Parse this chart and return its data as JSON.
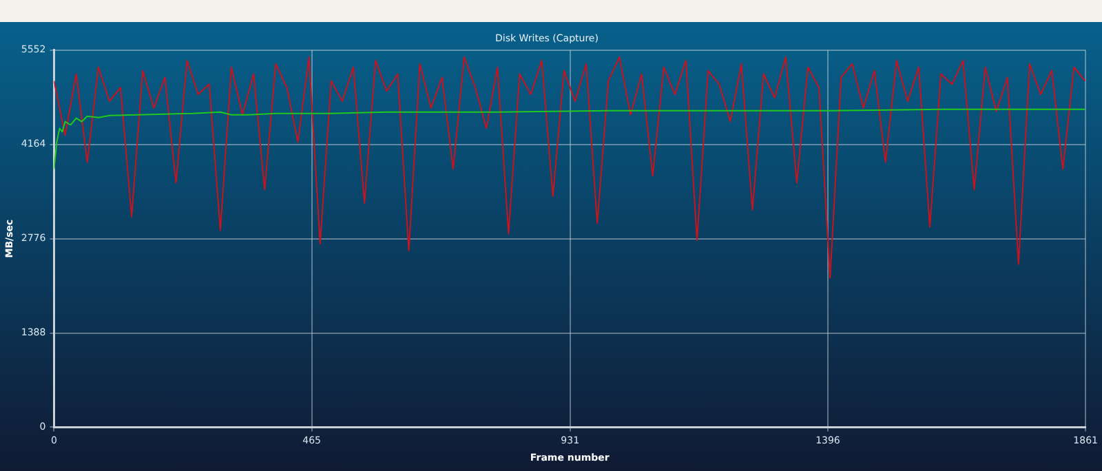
{
  "chart_data": {
    "type": "line",
    "title": "Disk Writes (Capture)",
    "xlabel": "Frame number",
    "ylabel": "MB/sec",
    "xlim": [
      0,
      1861
    ],
    "xticks": [
      0,
      465,
      931,
      1396,
      1861
    ],
    "ylim": [
      0,
      5552
    ],
    "yticks": [
      0,
      1388,
      2776,
      4164,
      5552
    ],
    "grid": true,
    "legend": false,
    "marker": "none",
    "series": [
      {
        "color": "#c8141e",
        "x": [
          0,
          20,
          40,
          60,
          80,
          100,
          120,
          140,
          160,
          180,
          200,
          220,
          240,
          260,
          280,
          300,
          320,
          340,
          360,
          380,
          400,
          420,
          440,
          460,
          480,
          500,
          520,
          540,
          560,
          580,
          600,
          620,
          640,
          660,
          680,
          700,
          720,
          740,
          760,
          780,
          800,
          820,
          840,
          860,
          880,
          900,
          920,
          940,
          960,
          980,
          1000,
          1020,
          1040,
          1060,
          1080,
          1100,
          1120,
          1140,
          1160,
          1180,
          1200,
          1220,
          1240,
          1260,
          1280,
          1300,
          1320,
          1340,
          1360,
          1380,
          1400,
          1420,
          1440,
          1460,
          1480,
          1500,
          1520,
          1540,
          1560,
          1580,
          1600,
          1620,
          1640,
          1660,
          1680,
          1700,
          1720,
          1740,
          1760,
          1780,
          1800,
          1820,
          1840,
          1860
        ],
        "values": [
          5100,
          4300,
          5200,
          3900,
          5300,
          4800,
          5000,
          3100,
          5250,
          4700,
          5150,
          3600,
          5400,
          4900,
          5050,
          2900,
          5300,
          4600,
          5200,
          3500,
          5350,
          5000,
          4200,
          5450,
          2700,
          5100,
          4800,
          5300,
          3300,
          5400,
          4950,
          5200,
          2600,
          5350,
          4700,
          5150,
          3800,
          5450,
          5000,
          4400,
          5300,
          2850,
          5200,
          4900,
          5400,
          3400,
          5250,
          4800,
          5350,
          3000,
          5100,
          5450,
          4600,
          5200,
          3700,
          5300,
          4900,
          5400,
          2750,
          5250,
          5050,
          4500,
          5350,
          3200,
          5200,
          4850,
          5450,
          3600,
          5300,
          5000,
          2200,
          5150,
          5350,
          4700,
          5250,
          3900,
          5400,
          4800,
          5300,
          2950,
          5200,
          5050,
          5400,
          3500,
          5300,
          4650,
          5150,
          2400,
          5350,
          4900,
          5250,
          3800,
          5300,
          5100
        ]
      },
      {
        "color": "#22c81e",
        "x": [
          0,
          5,
          10,
          15,
          20,
          30,
          40,
          50,
          60,
          80,
          100,
          150,
          200,
          250,
          300,
          320,
          350,
          400,
          500,
          600,
          800,
          1000,
          1200,
          1400,
          1600,
          1860
        ],
        "values": [
          3800,
          4200,
          4400,
          4350,
          4500,
          4450,
          4550,
          4500,
          4580,
          4560,
          4590,
          4600,
          4610,
          4620,
          4640,
          4600,
          4600,
          4620,
          4620,
          4640,
          4640,
          4660,
          4660,
          4660,
          4680,
          4680
        ]
      }
    ]
  }
}
